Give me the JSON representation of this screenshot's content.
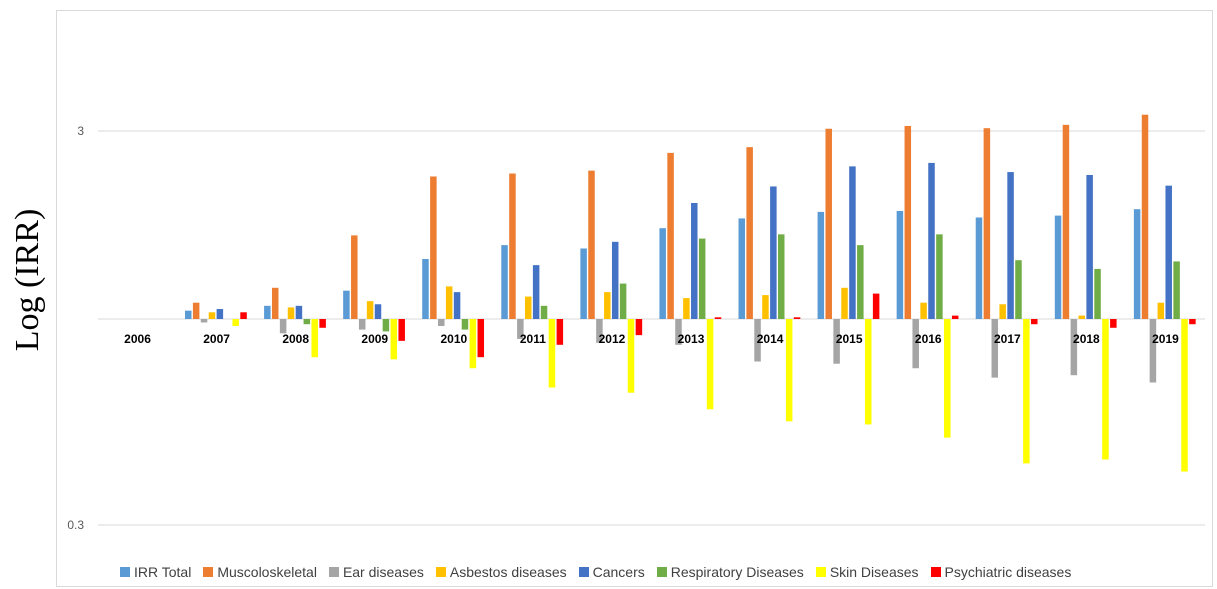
{
  "chart_data": {
    "type": "bar",
    "title": "",
    "xlabel": "",
    "ylabel": "Log (IRR)",
    "y_scale": "log",
    "ylim": [
      0.2,
      7
    ],
    "y_ticks": [
      {
        "value": 3,
        "label": "3"
      },
      {
        "value": 0.3,
        "label": "0.3"
      }
    ],
    "grid": true,
    "legend_position": "bottom",
    "categories": [
      "2006",
      "2007",
      "2008",
      "2009",
      "2010",
      "2011",
      "2012",
      "2013",
      "2014",
      "2015",
      "2016",
      "2017",
      "2018",
      "2019"
    ],
    "series": [
      {
        "name": "IRR Total",
        "color": "#5B9BD5",
        "values": [
          1.0,
          1.05,
          1.08,
          1.18,
          1.42,
          1.54,
          1.51,
          1.7,
          1.8,
          1.87,
          1.88,
          1.81,
          1.83,
          1.9
        ]
      },
      {
        "name": "Muscoloskeletal",
        "color": "#ED7D31",
        "values": [
          1.0,
          1.1,
          1.2,
          1.63,
          2.3,
          2.34,
          2.38,
          2.64,
          2.73,
          3.04,
          3.09,
          3.05,
          3.11,
          3.3
        ]
      },
      {
        "name": "Ear diseases",
        "color": "#A5A5A5",
        "values": [
          1.0,
          0.98,
          0.92,
          0.94,
          0.96,
          0.89,
          0.87,
          0.86,
          0.78,
          0.77,
          0.75,
          0.71,
          0.72,
          0.69
        ]
      },
      {
        "name": "Asbestos diseases",
        "color": "#FFC000",
        "values": [
          1.0,
          1.04,
          1.07,
          1.11,
          1.21,
          1.14,
          1.17,
          1.13,
          1.15,
          1.2,
          1.1,
          1.09,
          1.02,
          1.1
        ]
      },
      {
        "name": "Cancers",
        "color": "#4472C4",
        "values": [
          1.0,
          1.06,
          1.08,
          1.09,
          1.17,
          1.37,
          1.57,
          1.97,
          2.17,
          2.44,
          2.49,
          2.36,
          2.32,
          2.18
        ]
      },
      {
        "name": "Respiratory Diseases",
        "color": "#70AD47",
        "values": [
          1.0,
          1.0,
          0.97,
          0.93,
          0.94,
          1.08,
          1.23,
          1.6,
          1.64,
          1.54,
          1.64,
          1.41,
          1.34,
          1.4
        ]
      },
      {
        "name": "Skin Diseases",
        "color": "#FFFF00",
        "values": [
          1.0,
          0.96,
          0.8,
          0.79,
          0.75,
          0.67,
          0.65,
          0.59,
          0.55,
          0.54,
          0.5,
          0.43,
          0.44,
          0.41
        ]
      },
      {
        "name": "Psychiatric diseases",
        "color": "#FF0000",
        "values": [
          1.0,
          1.04,
          0.95,
          0.88,
          0.8,
          0.86,
          0.91,
          1.01,
          1.01,
          1.16,
          1.02,
          0.97,
          0.95,
          0.97
        ]
      }
    ]
  }
}
